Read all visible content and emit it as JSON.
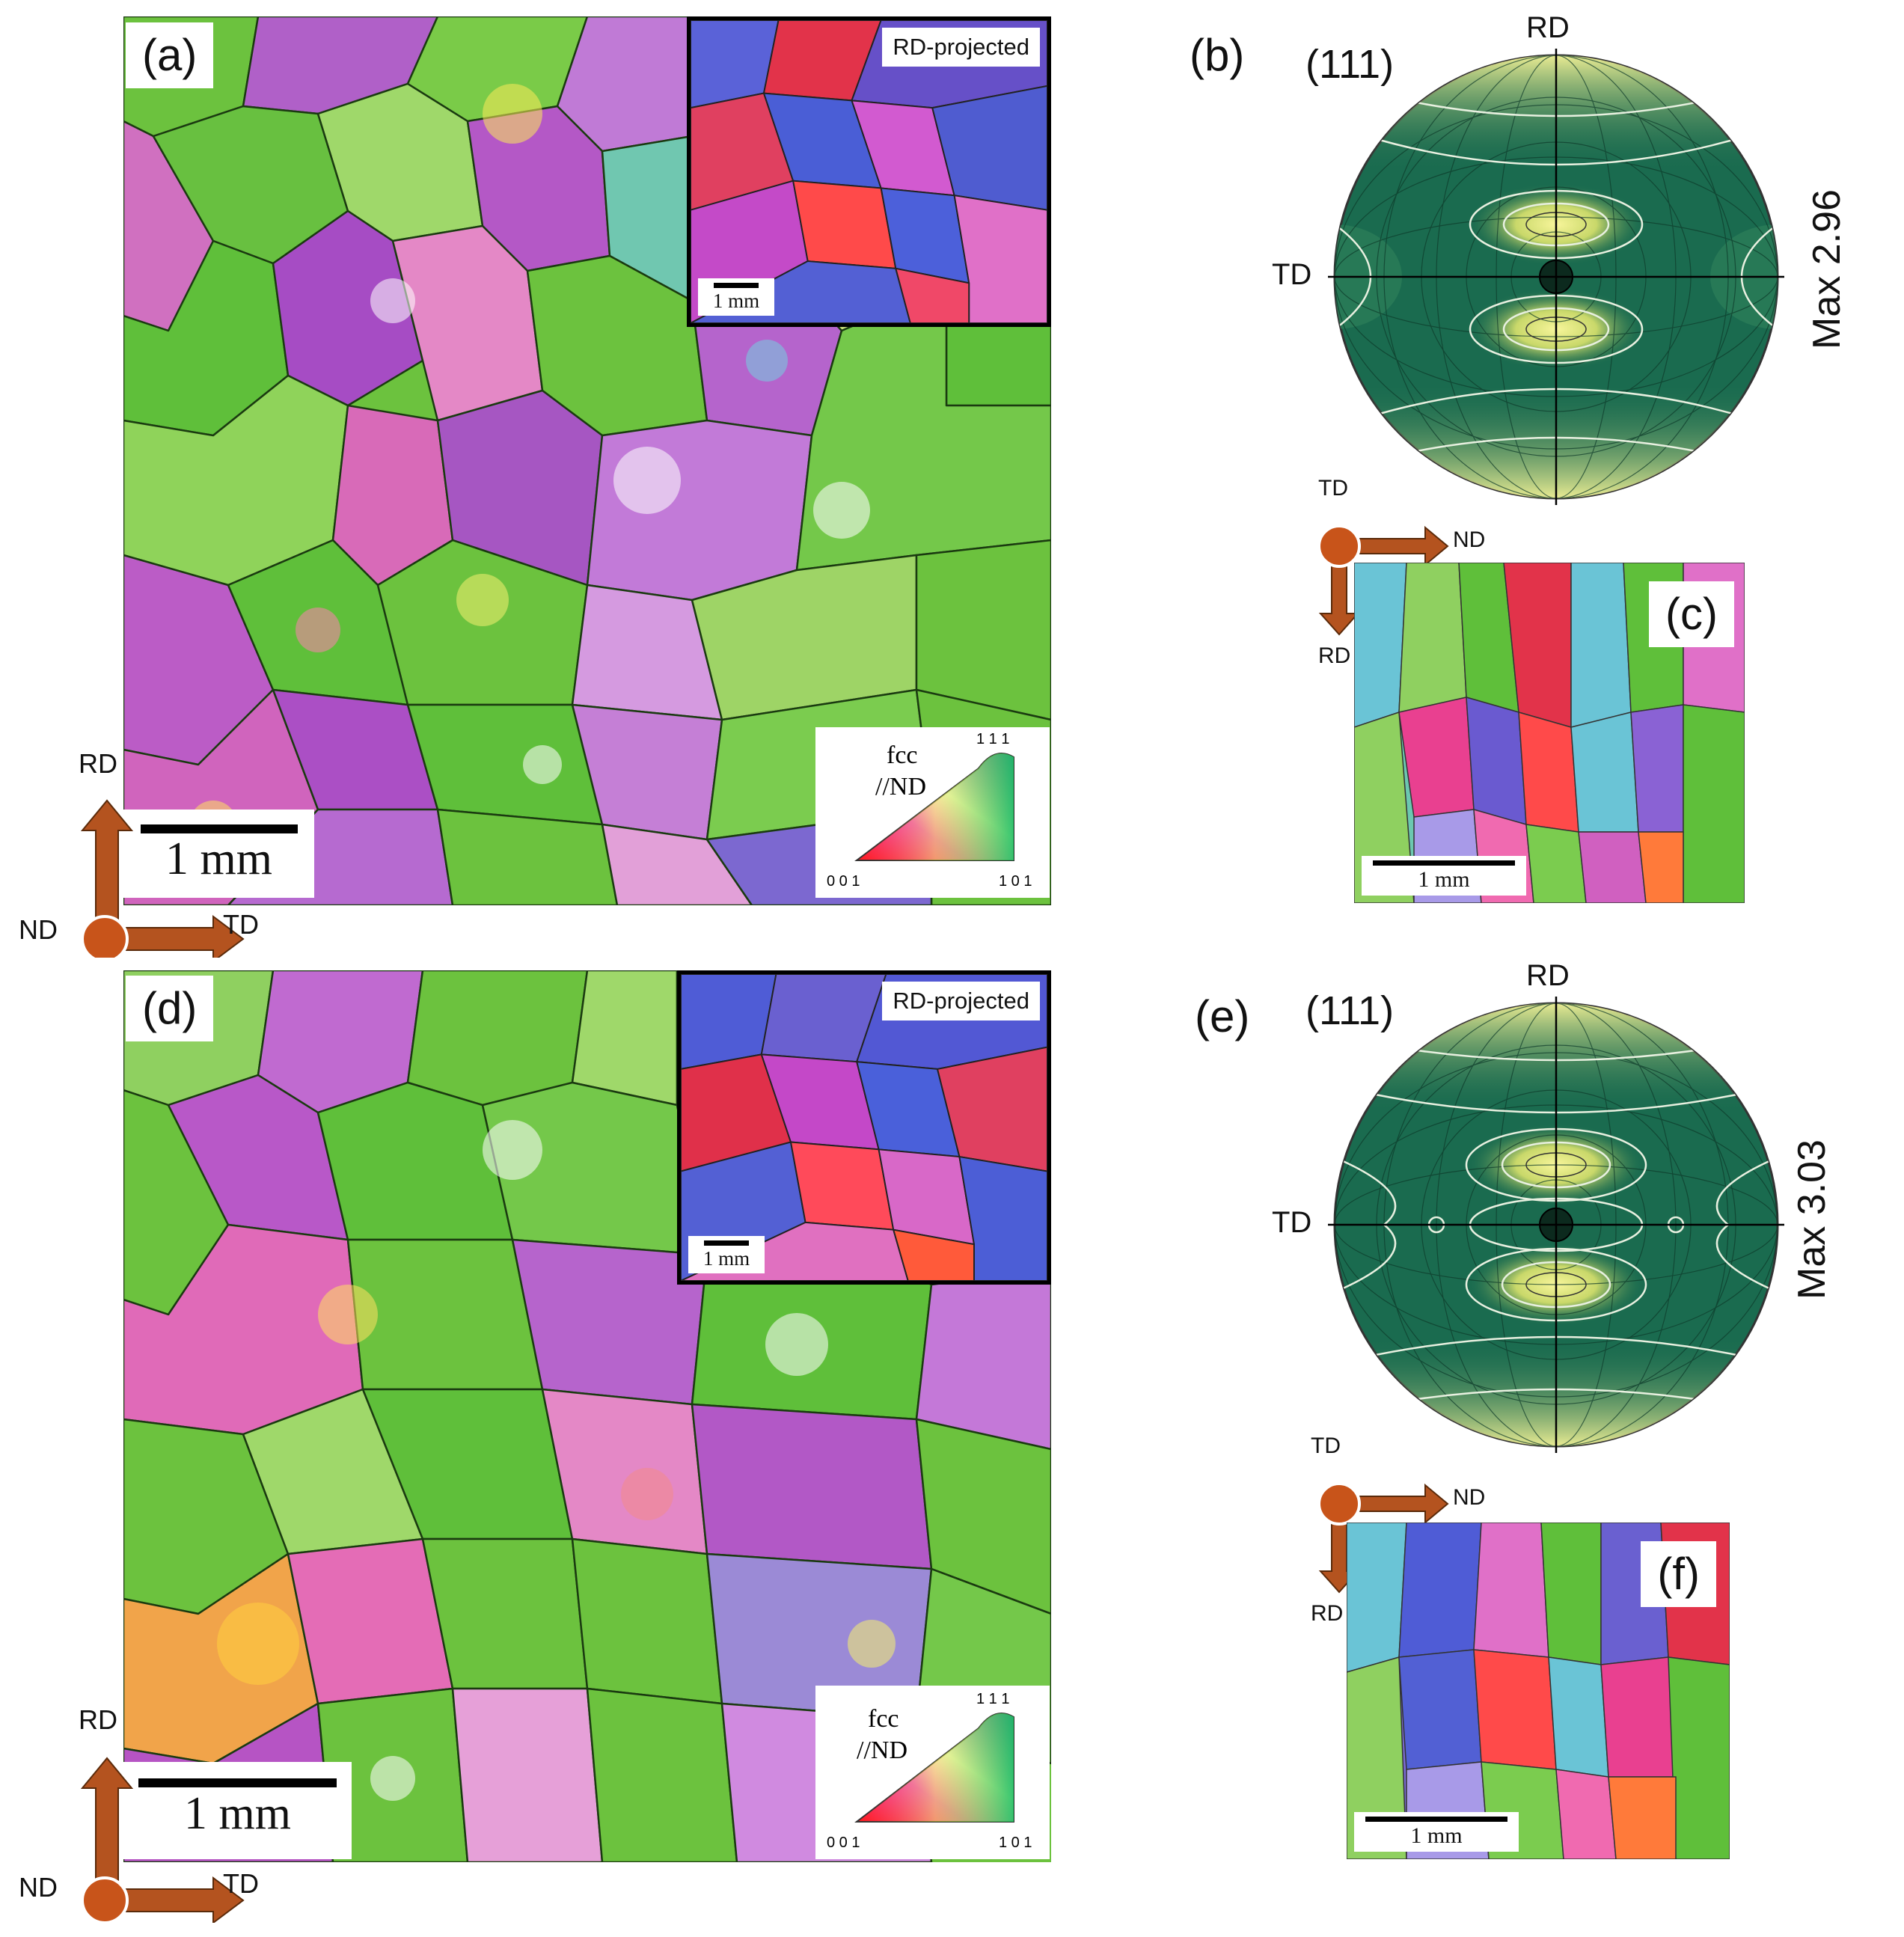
{
  "figure": {
    "panel_a": {
      "label": "(a)",
      "inset_label": "RD-projected",
      "inset_scale": "1 mm",
      "scale_bar": "1 mm",
      "legend": {
        "title_line1": "fcc",
        "title_line2": "//ND",
        "corner_001": "0 0 1",
        "corner_101": "1 0 1",
        "corner_111": "1 1 1"
      },
      "axes": {
        "up": "RD",
        "right": "TD",
        "out": "ND"
      }
    },
    "panel_b": {
      "label": "(b)",
      "plane": "(111)",
      "top": "RD",
      "left": "TD",
      "max": "Max 2.96"
    },
    "panel_c": {
      "label": "(c)",
      "scale_bar": "1 mm",
      "axes": {
        "out": "TD",
        "right": "ND",
        "down": "RD"
      }
    },
    "panel_d": {
      "label": "(d)",
      "inset_label": "RD-projected",
      "inset_scale": "1 mm",
      "scale_bar": "1 mm",
      "legend": {
        "title_line1": "fcc",
        "title_line2": "//ND",
        "corner_001": "0 0 1",
        "corner_101": "1 0 1",
        "corner_111": "1 1 1"
      },
      "axes": {
        "up": "RD",
        "right": "TD",
        "out": "ND"
      }
    },
    "panel_e": {
      "label": "(e)",
      "plane": "(111)",
      "top": "RD",
      "left": "TD",
      "max": "Max 3.03"
    },
    "panel_f": {
      "label": "(f)",
      "scale_bar": "1 mm",
      "axes": {
        "out": "TD",
        "right": "ND",
        "down": "RD"
      }
    }
  },
  "colors": {
    "green": "#5fbf3a",
    "magenta": "#b455c8",
    "pink": "#e46fb0",
    "blue": "#4f5fd6",
    "red": "#e0333a",
    "yellow": "#e8e04a",
    "cyan": "#5fc8d8",
    "arrow": "#b4531f",
    "pole_bg": "#1a6b4f",
    "pole_peak": "#f3f08a"
  }
}
